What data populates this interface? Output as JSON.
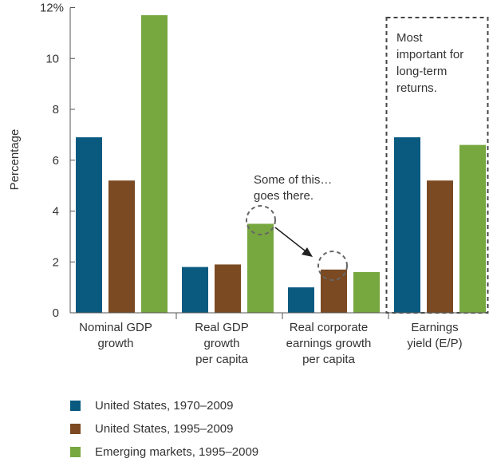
{
  "chart_data": {
    "type": "bar",
    "ylabel": "Percentage",
    "ylim": [
      0,
      12
    ],
    "yticks": [
      0,
      2,
      4,
      6,
      8,
      10,
      12
    ],
    "ytick_labels": [
      "0",
      "2",
      "4",
      "6",
      "8",
      "10",
      "12%"
    ],
    "categories": [
      [
        "Nominal GDP",
        "growth"
      ],
      [
        "Real GDP",
        "growth",
        "per capita"
      ],
      [
        "Real corporate",
        "earnings growth",
        "per capita"
      ],
      [
        "Earnings",
        "yield (E/P)"
      ]
    ],
    "series": [
      {
        "name": "United States, 1970–2009",
        "color": "#0a5a80",
        "values": [
          6.9,
          1.8,
          1.0,
          6.9
        ]
      },
      {
        "name": "United States, 1995–2009",
        "color": "#7b4a22",
        "values": [
          5.2,
          1.9,
          1.7,
          5.2
        ]
      },
      {
        "name": "Emerging markets, 1995–2009",
        "color": "#77a73f",
        "values": [
          11.7,
          3.5,
          1.6,
          6.6
        ]
      }
    ],
    "annotations": {
      "transfer_note": [
        "Some of this…",
        "goes there."
      ],
      "box_note": [
        "Most",
        "important for",
        "long-term",
        "returns."
      ]
    },
    "legend_position": "bottom"
  }
}
